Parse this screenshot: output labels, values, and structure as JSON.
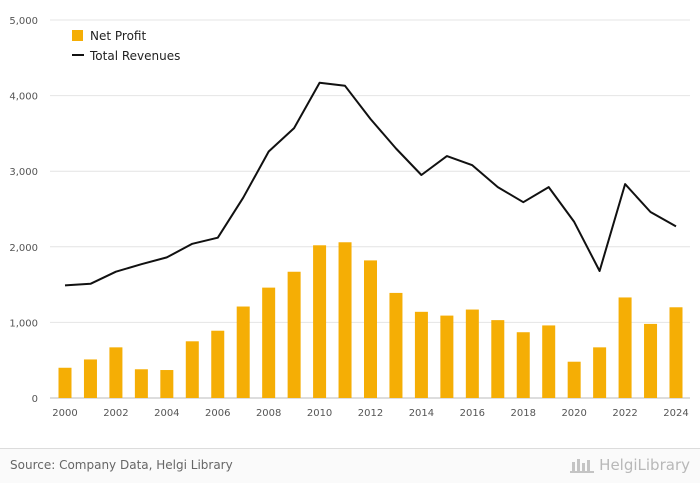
{
  "chart_data": {
    "type": "bar+line",
    "x": [
      2000,
      2001,
      2002,
      2003,
      2004,
      2005,
      2006,
      2007,
      2008,
      2009,
      2010,
      2011,
      2012,
      2013,
      2014,
      2015,
      2016,
      2017,
      2018,
      2019,
      2020,
      2021,
      2022,
      2023,
      2024
    ],
    "x_tick_labels": [
      "2000",
      "2002",
      "2004",
      "2006",
      "2008",
      "2010",
      "2012",
      "2014",
      "2016",
      "2018",
      "2020",
      "2022",
      "2024"
    ],
    "y_tick_labels": [
      "0",
      "1,000",
      "2,000",
      "3,000",
      "4,000",
      "5,000"
    ],
    "ylim": [
      0,
      5000
    ],
    "y_ticks": [
      0,
      1000,
      2000,
      3000,
      4000,
      5000
    ],
    "grid": true,
    "legend_position": "top-left",
    "series": [
      {
        "name": "Net Profit",
        "type": "bar",
        "color": "#F5AE05",
        "values": [
          400,
          510,
          670,
          380,
          370,
          750,
          890,
          1210,
          1460,
          1670,
          2020,
          2060,
          1820,
          1390,
          1140,
          1090,
          1170,
          1030,
          870,
          960,
          480,
          670,
          1330,
          980,
          1200
        ]
      },
      {
        "name": "Total Revenues",
        "type": "line",
        "color": "#111111",
        "values": [
          1490,
          1510,
          1670,
          1770,
          1860,
          2040,
          2120,
          2650,
          3260,
          3570,
          4170,
          4130,
          3690,
          3300,
          2950,
          3200,
          3080,
          2790,
          2590,
          2790,
          2330,
          1680,
          2830,
          2460,
          2270
        ]
      }
    ]
  },
  "footer": {
    "source": "Source: Company Data, Helgi Library",
    "brand": "HelgiLibrary"
  }
}
